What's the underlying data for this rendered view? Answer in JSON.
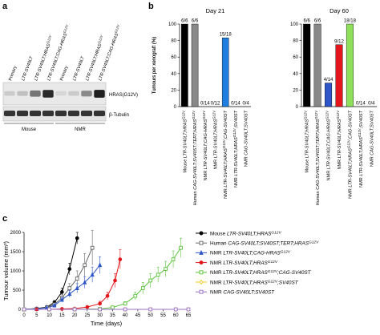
{
  "panels": {
    "a": "a",
    "b": "b",
    "c": "c"
  },
  "blot": {
    "lanes": [
      {
        "parts": [
          {
            "t": "Primary"
          }
        ]
      },
      {
        "parts": [
          {
            "t": "LTR-SV40LT",
            "i": true
          }
        ]
      },
      {
        "parts": [
          {
            "t": "LTR-SV40LT;HRAS",
            "i": true
          },
          {
            "t": "G12V",
            "i": true,
            "sup": true
          }
        ]
      },
      {
        "parts": [
          {
            "t": "LTR-SV40LT;CAG-HRAS",
            "i": true
          },
          {
            "t": "G12V",
            "i": true,
            "sup": true
          }
        ]
      },
      {
        "parts": [
          {
            "t": "Primary"
          }
        ]
      },
      {
        "parts": [
          {
            "t": "LTR-SV40LT",
            "i": true
          }
        ]
      },
      {
        "parts": [
          {
            "t": "LTR-SV40LT;HRAS",
            "i": true
          },
          {
            "t": "G12V",
            "i": true,
            "sup": true
          }
        ]
      },
      {
        "parts": [
          {
            "t": "LTR-SV40LT;CAG-HRAS",
            "i": true
          },
          {
            "t": "G12V",
            "i": true,
            "sup": true
          }
        ]
      }
    ],
    "bands": {
      "label_hras": "HRAS(G12V)",
      "label_tub": "β-Tubulin",
      "hras_intensity": [
        0.15,
        0.2,
        0.55,
        0.9,
        0.1,
        0.15,
        0.45,
        0.95
      ],
      "tub_intensity": [
        0.85,
        0.85,
        0.85,
        0.85,
        0.85,
        0.85,
        0.85,
        0.85
      ]
    },
    "groups": [
      "Mouse",
      "NMR"
    ]
  },
  "chart_data": [
    {
      "type": "bar",
      "panel": "b",
      "title": "Day 21",
      "ylabel": "Tumours per xenograft (%)",
      "ylim": [
        0,
        100
      ],
      "yticks": [
        0,
        20,
        40,
        60,
        80,
        100
      ],
      "values": [
        100,
        100,
        0,
        0,
        83.3,
        0,
        0
      ],
      "annotations": [
        "6/6",
        "6/6",
        "0/14",
        "0/12",
        "15/18",
        "0/14",
        "0/4"
      ],
      "colors": [
        "#000000",
        "#888888",
        "#2e56c8",
        "#e4161b",
        "#1e7fe0",
        "#f3c517",
        "#9b6fc4"
      ]
    },
    {
      "type": "bar",
      "panel": "b",
      "title": "Day 60",
      "ylim": [
        0,
        100
      ],
      "yticks": [
        0,
        20,
        40,
        60,
        80,
        100
      ],
      "values": [
        100,
        100,
        28.6,
        75,
        100,
        0,
        0
      ],
      "annotations": [
        "6/6",
        "6/6",
        "4/14",
        "9/12",
        "18/18",
        "0/14",
        "0/4"
      ],
      "colors": [
        "#000000",
        "#888888",
        "#2e56c8",
        "#e4161b",
        "#8ee05a",
        "#1e7fe0",
        "#9b6fc4"
      ]
    },
    {
      "type": "line",
      "panel": "c",
      "xlabel": "Time (days)",
      "ylabel": "Tumour volume (mm³)",
      "xlim": [
        0,
        65
      ],
      "ylim": [
        0,
        2000
      ],
      "xticks": [
        0,
        5,
        10,
        15,
        20,
        25,
        30,
        35,
        40,
        45,
        50,
        55,
        60,
        65
      ],
      "yticks": [
        0,
        500,
        1000,
        1500,
        2000
      ],
      "series": [
        {
          "color": "#000000",
          "marker": "circle",
          "fill": true,
          "x": [
            0,
            5,
            9,
            12,
            15,
            18,
            21
          ],
          "y": [
            0,
            20,
            60,
            180,
            450,
            1050,
            1850
          ],
          "err": [
            0,
            10,
            20,
            50,
            100,
            150,
            150
          ]
        },
        {
          "color": "#666666",
          "marker": "square",
          "fill": false,
          "x": [
            0,
            5,
            9,
            12,
            15,
            18,
            21,
            24,
            27
          ],
          "y": [
            0,
            15,
            50,
            130,
            300,
            550,
            800,
            1150,
            1600
          ],
          "err": [
            0,
            10,
            20,
            40,
            80,
            120,
            200,
            300,
            450
          ]
        },
        {
          "color": "#2e56c8",
          "marker": "triangle",
          "fill": true,
          "x": [
            0,
            5,
            9,
            12,
            15,
            18,
            21,
            24,
            27,
            30
          ],
          "y": [
            0,
            10,
            40,
            100,
            250,
            400,
            550,
            700,
            900,
            1150
          ],
          "err": [
            0,
            10,
            20,
            30,
            60,
            90,
            120,
            150,
            200,
            220
          ]
        },
        {
          "color": "#e4161b",
          "marker": "circle",
          "fill": true,
          "x": [
            0,
            5,
            10,
            15,
            20,
            25,
            30,
            33,
            36,
            38
          ],
          "y": [
            0,
            0,
            0,
            10,
            20,
            60,
            150,
            350,
            750,
            1300
          ],
          "err": [
            0,
            0,
            0,
            5,
            10,
            30,
            60,
            100,
            180,
            250
          ]
        },
        {
          "color": "#5cc23c",
          "marker": "square",
          "fill": false,
          "x": [
            0,
            10,
            20,
            30,
            35,
            40,
            44,
            47,
            50,
            53,
            56,
            59,
            62
          ],
          "y": [
            0,
            0,
            0,
            10,
            50,
            150,
            350,
            550,
            750,
            900,
            1050,
            1300,
            1600
          ],
          "err": [
            0,
            0,
            0,
            5,
            20,
            50,
            100,
            150,
            180,
            200,
            200,
            220,
            250
          ]
        },
        {
          "color": "#f3c517",
          "marker": "diamond",
          "fill": false,
          "x": [
            0,
            10,
            20,
            30,
            40,
            50,
            60,
            65
          ],
          "y": [
            0,
            0,
            0,
            0,
            0,
            0,
            0,
            0
          ],
          "err": [
            0,
            0,
            0,
            0,
            0,
            0,
            0,
            0
          ]
        },
        {
          "color": "#9b6fc4",
          "marker": "square",
          "fill": false,
          "x": [
            0,
            10,
            20,
            30,
            40,
            50,
            60,
            65
          ],
          "y": [
            0,
            0,
            0,
            0,
            0,
            0,
            0,
            0
          ],
          "err": [
            0,
            0,
            0,
            0,
            0,
            0,
            0,
            0
          ]
        }
      ]
    }
  ],
  "categories_rich": [
    [
      {
        "t": "Mouse "
      },
      {
        "t": "LTR-SV40LT;HRAS",
        "i": true
      },
      {
        "t": "G12V",
        "i": true,
        "sup": true
      }
    ],
    [
      {
        "t": "Human "
      },
      {
        "t": "CAG-SV40LT;SV40ST;TERT;HRAS",
        "i": true
      },
      {
        "t": "G12V",
        "i": true,
        "sup": true
      }
    ],
    [
      {
        "t": "NMR "
      },
      {
        "t": "LTR-SV40LT;CAG-HRAS",
        "i": true
      },
      {
        "t": "G12V",
        "i": true,
        "sup": true
      }
    ],
    [
      {
        "t": "NMR "
      },
      {
        "t": "LTR-SV40LT;HRAS",
        "i": true
      },
      {
        "t": "G12V",
        "i": true,
        "sup": true
      }
    ],
    [
      {
        "t": "NMR "
      },
      {
        "t": "LTR-SV40LT;HRAS",
        "i": true
      },
      {
        "t": "G12V",
        "i": true,
        "sup": true
      },
      {
        "t": ";CAG-SV40ST",
        "i": true
      }
    ],
    [
      {
        "t": "NMR "
      },
      {
        "t": "LTR-SV40LT;HRAS",
        "i": true
      },
      {
        "t": "G12V",
        "i": true,
        "sup": true
      },
      {
        "t": ";SV40ST",
        "i": true
      }
    ],
    [
      {
        "t": "NMR "
      },
      {
        "t": "CAG-SV40LT;SV40ST",
        "i": true
      }
    ]
  ]
}
